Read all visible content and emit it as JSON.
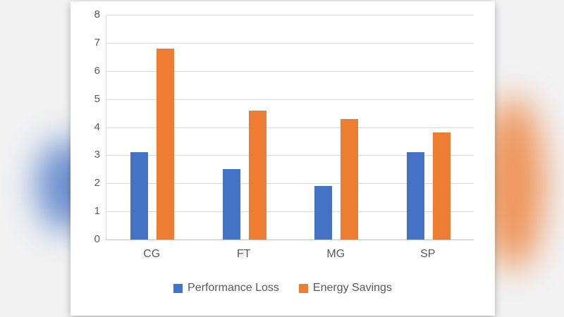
{
  "background": {
    "left_blob_color": "#4472c4",
    "right_blob_color": "#ed7d31"
  },
  "chart_data": {
    "type": "bar",
    "title": "",
    "xlabel": "",
    "ylabel": "",
    "categories": [
      "CG",
      "FT",
      "MG",
      "SP"
    ],
    "series": [
      {
        "name": "Performance Loss",
        "color": "#4472c4",
        "values": [
          3.1,
          2.5,
          1.9,
          3.1
        ]
      },
      {
        "name": "Energy Savings",
        "color": "#ed7d31",
        "values": [
          6.8,
          4.6,
          4.3,
          3.8
        ]
      }
    ],
    "ylim": [
      0,
      8
    ],
    "yticks": [
      0,
      1,
      2,
      3,
      4,
      5,
      6,
      7,
      8
    ],
    "grid": true,
    "legend_position": "bottom"
  }
}
